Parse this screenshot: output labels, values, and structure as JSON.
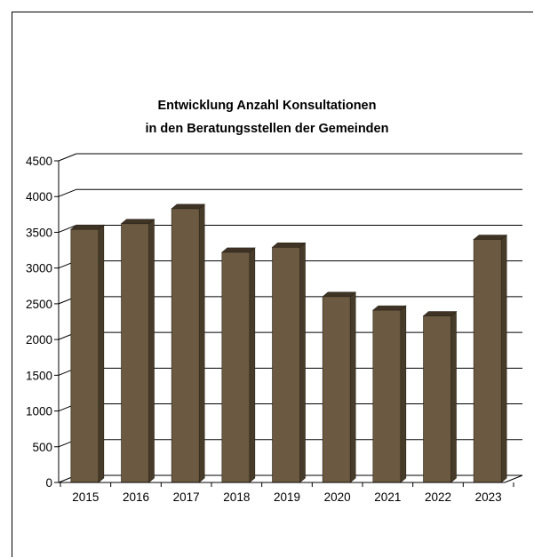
{
  "chart_data": {
    "type": "bar",
    "title_line1": "Entwicklung Anzahl Konsultationen",
    "title_line2": "in den Beratungsstellen der Gemeinden",
    "xlabel": "",
    "ylabel": "",
    "categories": [
      "2015",
      "2016",
      "2017",
      "2018",
      "2019",
      "2020",
      "2021",
      "2022",
      "2023"
    ],
    "values": [
      3540,
      3620,
      3830,
      3220,
      3290,
      2600,
      2410,
      2330,
      3400
    ],
    "ylim": [
      0,
      4500
    ],
    "yticks": [
      0,
      500,
      1000,
      1500,
      2000,
      2500,
      3000,
      3500,
      4000,
      4500
    ],
    "grid": true,
    "style": "3d-column",
    "colors": {
      "front": "#6b5a41",
      "side": "#473b29",
      "top": "#3e3325"
    }
  }
}
